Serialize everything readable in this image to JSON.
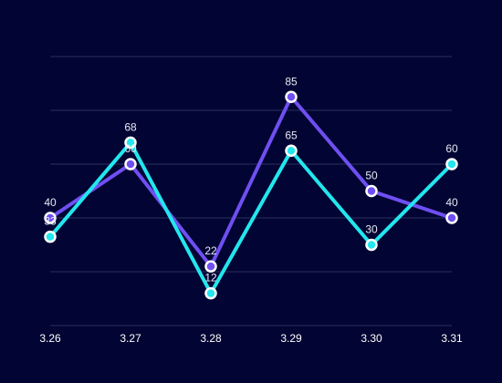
{
  "chart_data": {
    "type": "line",
    "title": "",
    "xlabel": "",
    "ylabel": "",
    "categories": [
      "3.26",
      "3.27",
      "3.28",
      "3.29",
      "3.30",
      "3.31"
    ],
    "ylim": [
      0,
      100
    ],
    "grid": true,
    "series": [
      {
        "color": "#6f4ff2",
        "values": [
          40,
          60,
          22,
          85,
          50,
          40
        ]
      },
      {
        "color": "#23e6ee",
        "values": [
          33,
          68,
          12,
          65,
          30,
          60
        ]
      }
    ]
  }
}
